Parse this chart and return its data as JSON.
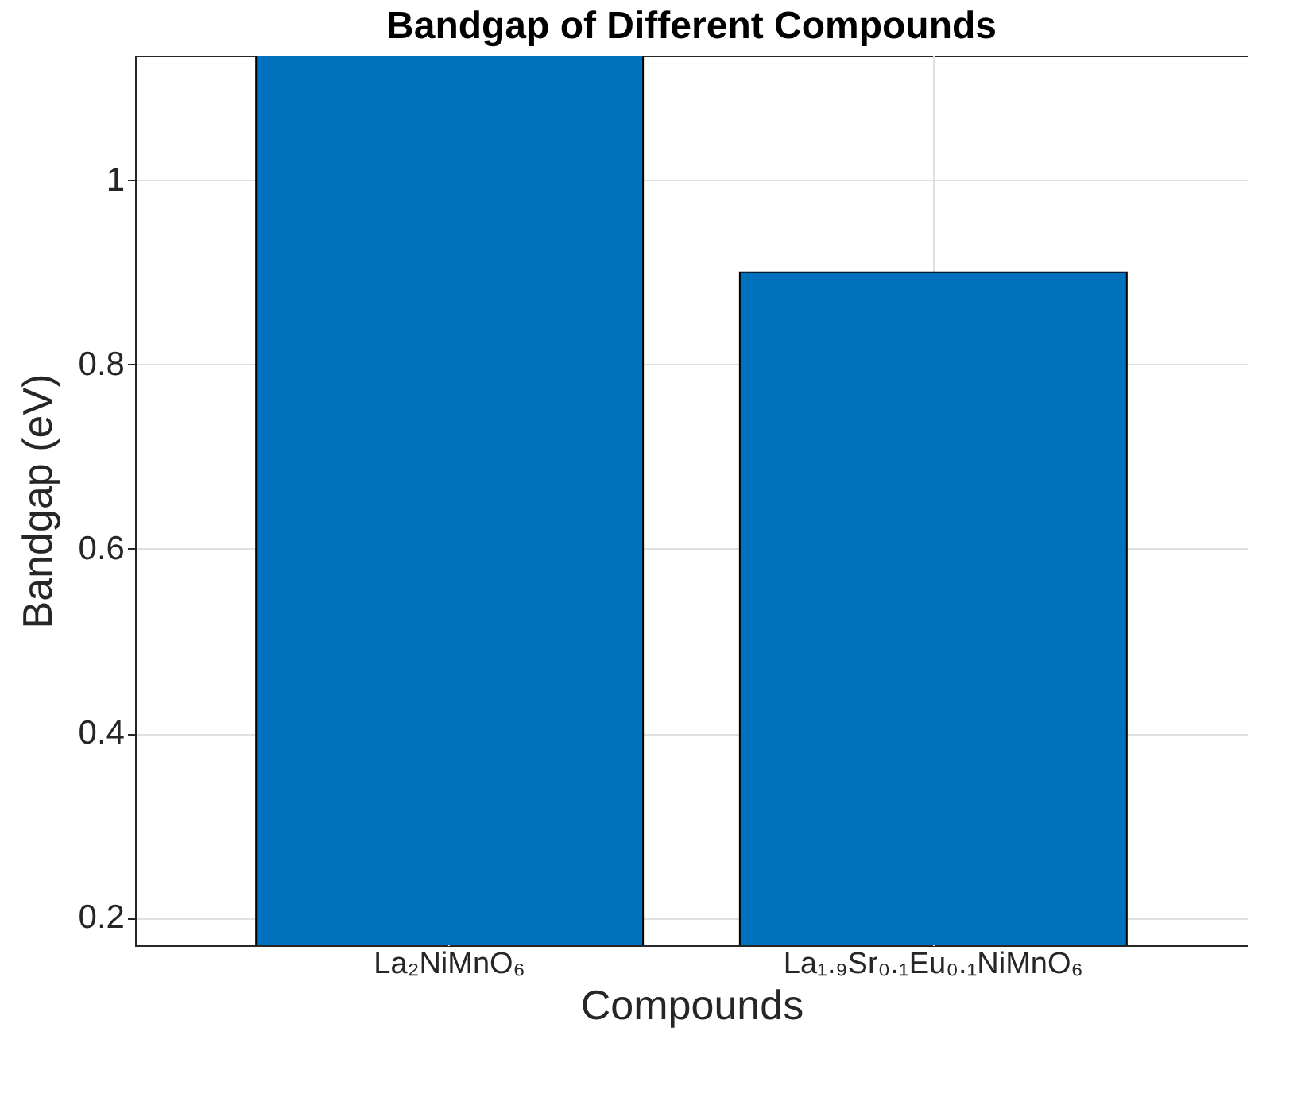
{
  "chart_data": {
    "type": "bar",
    "title": "Bandgap of Different Compounds",
    "xlabel": "Compounds",
    "ylabel": "Bandgap (eV)",
    "categories": [
      "La₂NiMnO₆",
      "La₁.₉Sr₀.₁Eu₀.₁NiMnO₆"
    ],
    "values": [
      1.135,
      0.9
    ],
    "color": "#0072bd",
    "ylim": [
      0.17,
      1.135
    ],
    "yticks": [
      0.2,
      0.4,
      0.6,
      0.8,
      1
    ],
    "grid": true
  }
}
